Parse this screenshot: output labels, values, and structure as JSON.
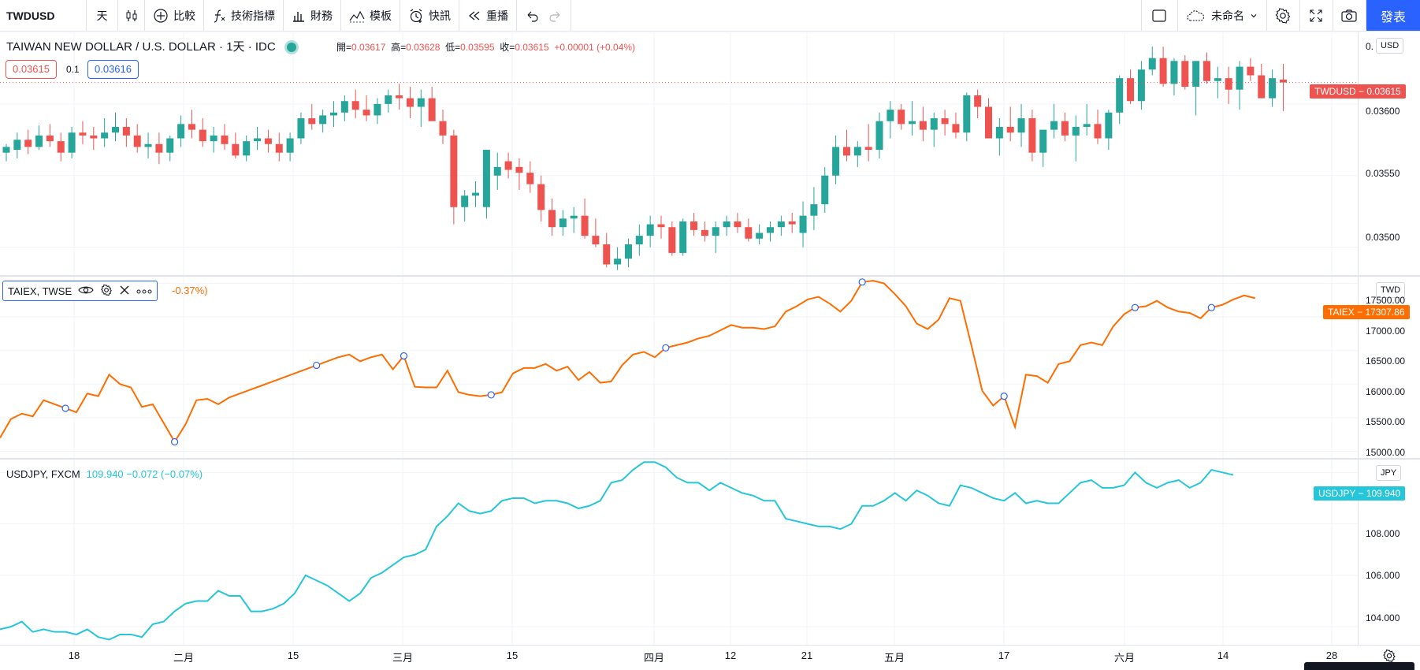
{
  "toolbar": {
    "symbol": "TWDUSD",
    "interval": "天",
    "compare": "比較",
    "indicators": "技術指標",
    "financials": "財務",
    "templates": "模板",
    "alerts": "快訊",
    "replay": "重播",
    "layout_name": "未命名",
    "publish": "發表"
  },
  "main": {
    "title": "TAIWAN NEW DOLLAR / U.S. DOLLAR · 1天 · IDC",
    "ohlc": {
      "open_label": "開=",
      "open": "0.03617",
      "high_label": "高=",
      "high": "0.03628",
      "low_label": "低=",
      "low": "0.03595",
      "close_label": "收=",
      "close": "0.03615",
      "change": "+0.00001 (+0.04%)"
    },
    "bid": "0.03615",
    "spread": "0.1",
    "ask": "0.03616",
    "currency": "USD",
    "price_ticks": [
      "0.",
      "0.03600",
      "0.03550",
      "0.03500"
    ],
    "last_label": "TWDUSD − 0.03615",
    "colors": {
      "up": "#26a69a",
      "down": "#ef5350"
    }
  },
  "taiex": {
    "legend": "TAIEX, TWSE",
    "change_suffix": "-0.37%)",
    "currency": "TWD",
    "ticks": [
      "17500.00",
      "17000.00",
      "16500.00",
      "16000.00",
      "15500.00",
      "15000.00"
    ],
    "last_label": "TAIEX − 17307.86",
    "color": "#ff6d00"
  },
  "usdjpy": {
    "legend": "USDJPY, FXCM",
    "value": "109.940 −0.072 (−0.07%)",
    "currency": "JPY",
    "ticks": [
      "108.000",
      "106.000",
      "104.000"
    ],
    "last_label": "USDJPY − 109.940",
    "color": "#26c6da"
  },
  "time_axis": [
    "18",
    "二月",
    "15",
    "三月",
    "15",
    "四月",
    "12",
    "21",
    "五月",
    "17",
    "六月",
    "14",
    "28"
  ],
  "chart_data": [
    {
      "type": "candlestick",
      "series": [
        {
          "name": "TWDUSD"
        }
      ],
      "ylim": [
        0.0348,
        0.0365
      ],
      "values": [
        [
          0.03566,
          0.03572,
          0.0356,
          0.0357
        ],
        [
          0.03568,
          0.0358,
          0.03562,
          0.03575
        ],
        [
          0.03575,
          0.03582,
          0.03565,
          0.0357
        ],
        [
          0.0357,
          0.03585,
          0.03568,
          0.03578
        ],
        [
          0.03578,
          0.03586,
          0.0357,
          0.03574
        ],
        [
          0.03574,
          0.0358,
          0.0356,
          0.03566
        ],
        [
          0.03566,
          0.03584,
          0.03562,
          0.0358
        ],
        [
          0.0358,
          0.03588,
          0.03572,
          0.03578
        ],
        [
          0.03578,
          0.03584,
          0.03568,
          0.03576
        ],
        [
          0.03576,
          0.0359,
          0.0357,
          0.0358
        ],
        [
          0.0358,
          0.03594,
          0.03574,
          0.03584
        ],
        [
          0.03584,
          0.0359,
          0.0357,
          0.03578
        ],
        [
          0.03578,
          0.03586,
          0.03566,
          0.0357
        ],
        [
          0.0357,
          0.0358,
          0.03562,
          0.03572
        ],
        [
          0.03572,
          0.0358,
          0.03558,
          0.03566
        ],
        [
          0.03566,
          0.03578,
          0.0356,
          0.03576
        ],
        [
          0.03576,
          0.03592,
          0.0357,
          0.03586
        ],
        [
          0.03586,
          0.03596,
          0.03576,
          0.03582
        ],
        [
          0.03582,
          0.0359,
          0.0357,
          0.03574
        ],
        [
          0.03574,
          0.03584,
          0.03566,
          0.03578
        ],
        [
          0.03578,
          0.03586,
          0.03568,
          0.03572
        ],
        [
          0.03572,
          0.0358,
          0.03562,
          0.03564
        ],
        [
          0.03564,
          0.03578,
          0.0356,
          0.03574
        ],
        [
          0.03574,
          0.03584,
          0.03568,
          0.03576
        ],
        [
          0.03576,
          0.03582,
          0.03566,
          0.03572
        ],
        [
          0.03572,
          0.0358,
          0.0356,
          0.03566
        ],
        [
          0.03566,
          0.0358,
          0.0356,
          0.03576
        ],
        [
          0.03576,
          0.03594,
          0.03572,
          0.0359
        ],
        [
          0.0359,
          0.036,
          0.03582,
          0.03586
        ],
        [
          0.03586,
          0.03596,
          0.0358,
          0.03592
        ],
        [
          0.03592,
          0.03602,
          0.03584,
          0.03594
        ],
        [
          0.03594,
          0.03606,
          0.03588,
          0.03602
        ],
        [
          0.03602,
          0.0361,
          0.0359,
          0.03596
        ],
        [
          0.03596,
          0.03606,
          0.03588,
          0.03592
        ],
        [
          0.03592,
          0.03604,
          0.03586,
          0.036
        ],
        [
          0.036,
          0.0361,
          0.03594,
          0.03606
        ],
        [
          0.03606,
          0.03614,
          0.03596,
          0.03604
        ],
        [
          0.03604,
          0.03612,
          0.0359,
          0.03598
        ],
        [
          0.03598,
          0.0361,
          0.03584,
          0.03604
        ],
        [
          0.03604,
          0.03612,
          0.0359,
          0.03588
        ],
        [
          0.03588,
          0.03596,
          0.03572,
          0.03578
        ],
        [
          0.03578,
          0.03582,
          0.03516,
          0.03528
        ],
        [
          0.03528,
          0.0354,
          0.03518,
          0.03536
        ],
        [
          0.03536,
          0.03546,
          0.03528,
          0.03538
        ],
        [
          0.03528,
          0.03568,
          0.0352,
          0.03568
        ],
        [
          0.0355,
          0.03566,
          0.0354,
          0.03556
        ],
        [
          0.0356,
          0.03566,
          0.03548,
          0.03554
        ],
        [
          0.03556,
          0.03562,
          0.0354,
          0.03552
        ],
        [
          0.03552,
          0.0356,
          0.03538,
          0.03544
        ],
        [
          0.03544,
          0.0355,
          0.03518,
          0.03526
        ],
        [
          0.03526,
          0.03534,
          0.03508,
          0.03514
        ],
        [
          0.03514,
          0.03526,
          0.03508,
          0.0352
        ],
        [
          0.0352,
          0.03528,
          0.0351,
          0.03522
        ],
        [
          0.03522,
          0.03534,
          0.03506,
          0.03508
        ],
        [
          0.03508,
          0.0352,
          0.035,
          0.03502
        ],
        [
          0.03502,
          0.0351,
          0.03486,
          0.03488
        ],
        [
          0.03488,
          0.035,
          0.03484,
          0.03492
        ],
        [
          0.03492,
          0.03506,
          0.03486,
          0.03502
        ],
        [
          0.03502,
          0.03516,
          0.03494,
          0.03508
        ],
        [
          0.03508,
          0.03522,
          0.035,
          0.03516
        ],
        [
          0.03516,
          0.03522,
          0.03506,
          0.03514
        ],
        [
          0.03514,
          0.03518,
          0.03494,
          0.03496
        ],
        [
          0.03496,
          0.0352,
          0.03494,
          0.03518
        ],
        [
          0.03518,
          0.03524,
          0.03508,
          0.03512
        ],
        [
          0.03512,
          0.03518,
          0.03504,
          0.03508
        ],
        [
          0.03508,
          0.03518,
          0.03496,
          0.03514
        ],
        [
          0.03514,
          0.03522,
          0.03508,
          0.03518
        ],
        [
          0.03518,
          0.03524,
          0.0351,
          0.03514
        ],
        [
          0.03514,
          0.0352,
          0.03504,
          0.03506
        ],
        [
          0.03506,
          0.03516,
          0.03502,
          0.0351
        ],
        [
          0.0351,
          0.03518,
          0.03504,
          0.03514
        ],
        [
          0.03514,
          0.03522,
          0.03508,
          0.03518
        ],
        [
          0.03518,
          0.03524,
          0.0351,
          0.03516
        ],
        [
          0.0351,
          0.03532,
          0.035,
          0.03522
        ],
        [
          0.03522,
          0.03542,
          0.03512,
          0.0353
        ],
        [
          0.0353,
          0.03556,
          0.03524,
          0.0355
        ],
        [
          0.0355,
          0.03578,
          0.03544,
          0.0357
        ],
        [
          0.0357,
          0.03582,
          0.0356,
          0.03564
        ],
        [
          0.03564,
          0.03574,
          0.03556,
          0.0357
        ],
        [
          0.0357,
          0.03586,
          0.0356,
          0.03568
        ],
        [
          0.03568,
          0.03594,
          0.03562,
          0.03588
        ],
        [
          0.03588,
          0.03602,
          0.03576,
          0.03596
        ],
        [
          0.03596,
          0.036,
          0.03582,
          0.03586
        ],
        [
          0.03586,
          0.03602,
          0.03578,
          0.03588
        ],
        [
          0.03588,
          0.03598,
          0.03574,
          0.03582
        ],
        [
          0.03582,
          0.03594,
          0.0357,
          0.0359
        ],
        [
          0.0359,
          0.03596,
          0.03578,
          0.03586
        ],
        [
          0.03586,
          0.03594,
          0.03576,
          0.0358
        ],
        [
          0.0358,
          0.03608,
          0.03574,
          0.03606
        ],
        [
          0.03606,
          0.0361,
          0.0359,
          0.03598
        ],
        [
          0.03598,
          0.03604,
          0.03576,
          0.03576
        ],
        [
          0.03576,
          0.0359,
          0.03564,
          0.03584
        ],
        [
          0.03584,
          0.03598,
          0.03574,
          0.0358
        ],
        [
          0.0358,
          0.036,
          0.0357,
          0.0359
        ],
        [
          0.0359,
          0.03596,
          0.0356,
          0.03566
        ],
        [
          0.03566,
          0.0358,
          0.03556,
          0.03582
        ],
        [
          0.03582,
          0.036,
          0.03576,
          0.03588
        ],
        [
          0.03588,
          0.03594,
          0.03574,
          0.03578
        ],
        [
          0.03578,
          0.03592,
          0.0356,
          0.03584
        ],
        [
          0.03584,
          0.036,
          0.03578,
          0.03586
        ],
        [
          0.03586,
          0.03596,
          0.03572,
          0.03576
        ],
        [
          0.03576,
          0.03596,
          0.03568,
          0.03594
        ],
        [
          0.03594,
          0.0362,
          0.03586,
          0.03618
        ],
        [
          0.03618,
          0.03624,
          0.036,
          0.03602
        ],
        [
          0.03602,
          0.0363,
          0.03596,
          0.03624
        ],
        [
          0.03624,
          0.0364,
          0.0362,
          0.03632
        ],
        [
          0.03632,
          0.0364,
          0.03612,
          0.03614
        ],
        [
          0.03614,
          0.03632,
          0.03606,
          0.0363
        ],
        [
          0.0363,
          0.03634,
          0.0361,
          0.03612
        ],
        [
          0.03612,
          0.0363,
          0.03592,
          0.0363
        ],
        [
          0.0363,
          0.03636,
          0.03614,
          0.03616
        ],
        [
          0.03616,
          0.03626,
          0.03604,
          0.03618
        ],
        [
          0.03618,
          0.03626,
          0.036,
          0.0361
        ],
        [
          0.0361,
          0.0363,
          0.03596,
          0.03626
        ],
        [
          0.03626,
          0.03632,
          0.03616,
          0.0362
        ],
        [
          0.0362,
          0.03628,
          0.03604,
          0.03604
        ],
        [
          0.03604,
          0.03624,
          0.03598,
          0.03618
        ],
        [
          0.03617,
          0.03628,
          0.03595,
          0.03615
        ]
      ]
    },
    {
      "type": "line",
      "series": [
        {
          "name": "TAIEX, TWSE"
        }
      ],
      "ylim": [
        14900,
        17600
      ],
      "values": [
        15200,
        15480,
        15560,
        15520,
        15760,
        15700,
        15640,
        15580,
        15860,
        15820,
        16140,
        16000,
        15950,
        15660,
        15700,
        15420,
        15140,
        15400,
        15760,
        15780,
        15700,
        15800,
        15860,
        15920,
        15980,
        16040,
        16100,
        16160,
        16220,
        16280,
        16340,
        16400,
        16440,
        16340,
        16400,
        16440,
        16220,
        16420,
        15960,
        15950,
        15950,
        16200,
        15880,
        15840,
        15820,
        15840,
        15880,
        16160,
        16240,
        16240,
        16300,
        16200,
        16260,
        16060,
        16180,
        16020,
        16040,
        16280,
        16440,
        16480,
        16400,
        16540,
        16580,
        16620,
        16680,
        16720,
        16800,
        16880,
        16840,
        16840,
        16820,
        16860,
        17080,
        17160,
        17260,
        17300,
        17200,
        17080,
        17240,
        17520,
        17540,
        17500,
        17340,
        17160,
        16900,
        16820,
        16960,
        17280,
        17240,
        16580,
        15900,
        15680,
        15820,
        15360,
        16140,
        16120,
        16020,
        16300,
        16340,
        16580,
        16620,
        16580,
        16860,
        17040,
        17140,
        17160,
        17240,
        17140,
        17080,
        17060,
        16980,
        17140,
        17180,
        17260,
        17320,
        17280
      ]
    },
    {
      "type": "line",
      "series": [
        {
          "name": "USDJPY, FXCM"
        }
      ],
      "ylim": [
        103.3,
        110.5
      ],
      "values": [
        103.9,
        104.0,
        104.2,
        103.8,
        103.9,
        103.8,
        103.8,
        103.7,
        103.9,
        103.6,
        103.5,
        103.7,
        103.7,
        103.6,
        104.1,
        104.2,
        104.6,
        104.9,
        105.0,
        105.0,
        105.4,
        105.2,
        105.2,
        104.6,
        104.6,
        104.7,
        104.9,
        105.3,
        106.0,
        105.8,
        105.6,
        105.3,
        105.0,
        105.3,
        105.9,
        106.1,
        106.4,
        106.7,
        106.8,
        107.0,
        107.9,
        108.3,
        108.8,
        108.5,
        108.4,
        108.5,
        108.9,
        109.0,
        109.0,
        108.8,
        108.9,
        108.9,
        108.8,
        108.6,
        108.7,
        108.9,
        109.6,
        109.7,
        110.1,
        110.4,
        110.4,
        110.2,
        109.8,
        109.6,
        109.6,
        109.3,
        109.6,
        109.4,
        109.2,
        109.1,
        108.9,
        108.9,
        108.2,
        108.1,
        108.0,
        107.9,
        107.9,
        107.8,
        108.0,
        108.7,
        108.7,
        108.9,
        109.2,
        108.9,
        109.3,
        109.1,
        108.8,
        108.7,
        109.5,
        109.4,
        109.2,
        109.0,
        108.9,
        109.2,
        108.8,
        108.9,
        108.8,
        108.8,
        109.2,
        109.6,
        109.7,
        109.4,
        109.4,
        109.5,
        110.0,
        109.6,
        109.4,
        109.6,
        109.7,
        109.4,
        109.6,
        110.1,
        110.0,
        109.9
      ]
    }
  ]
}
